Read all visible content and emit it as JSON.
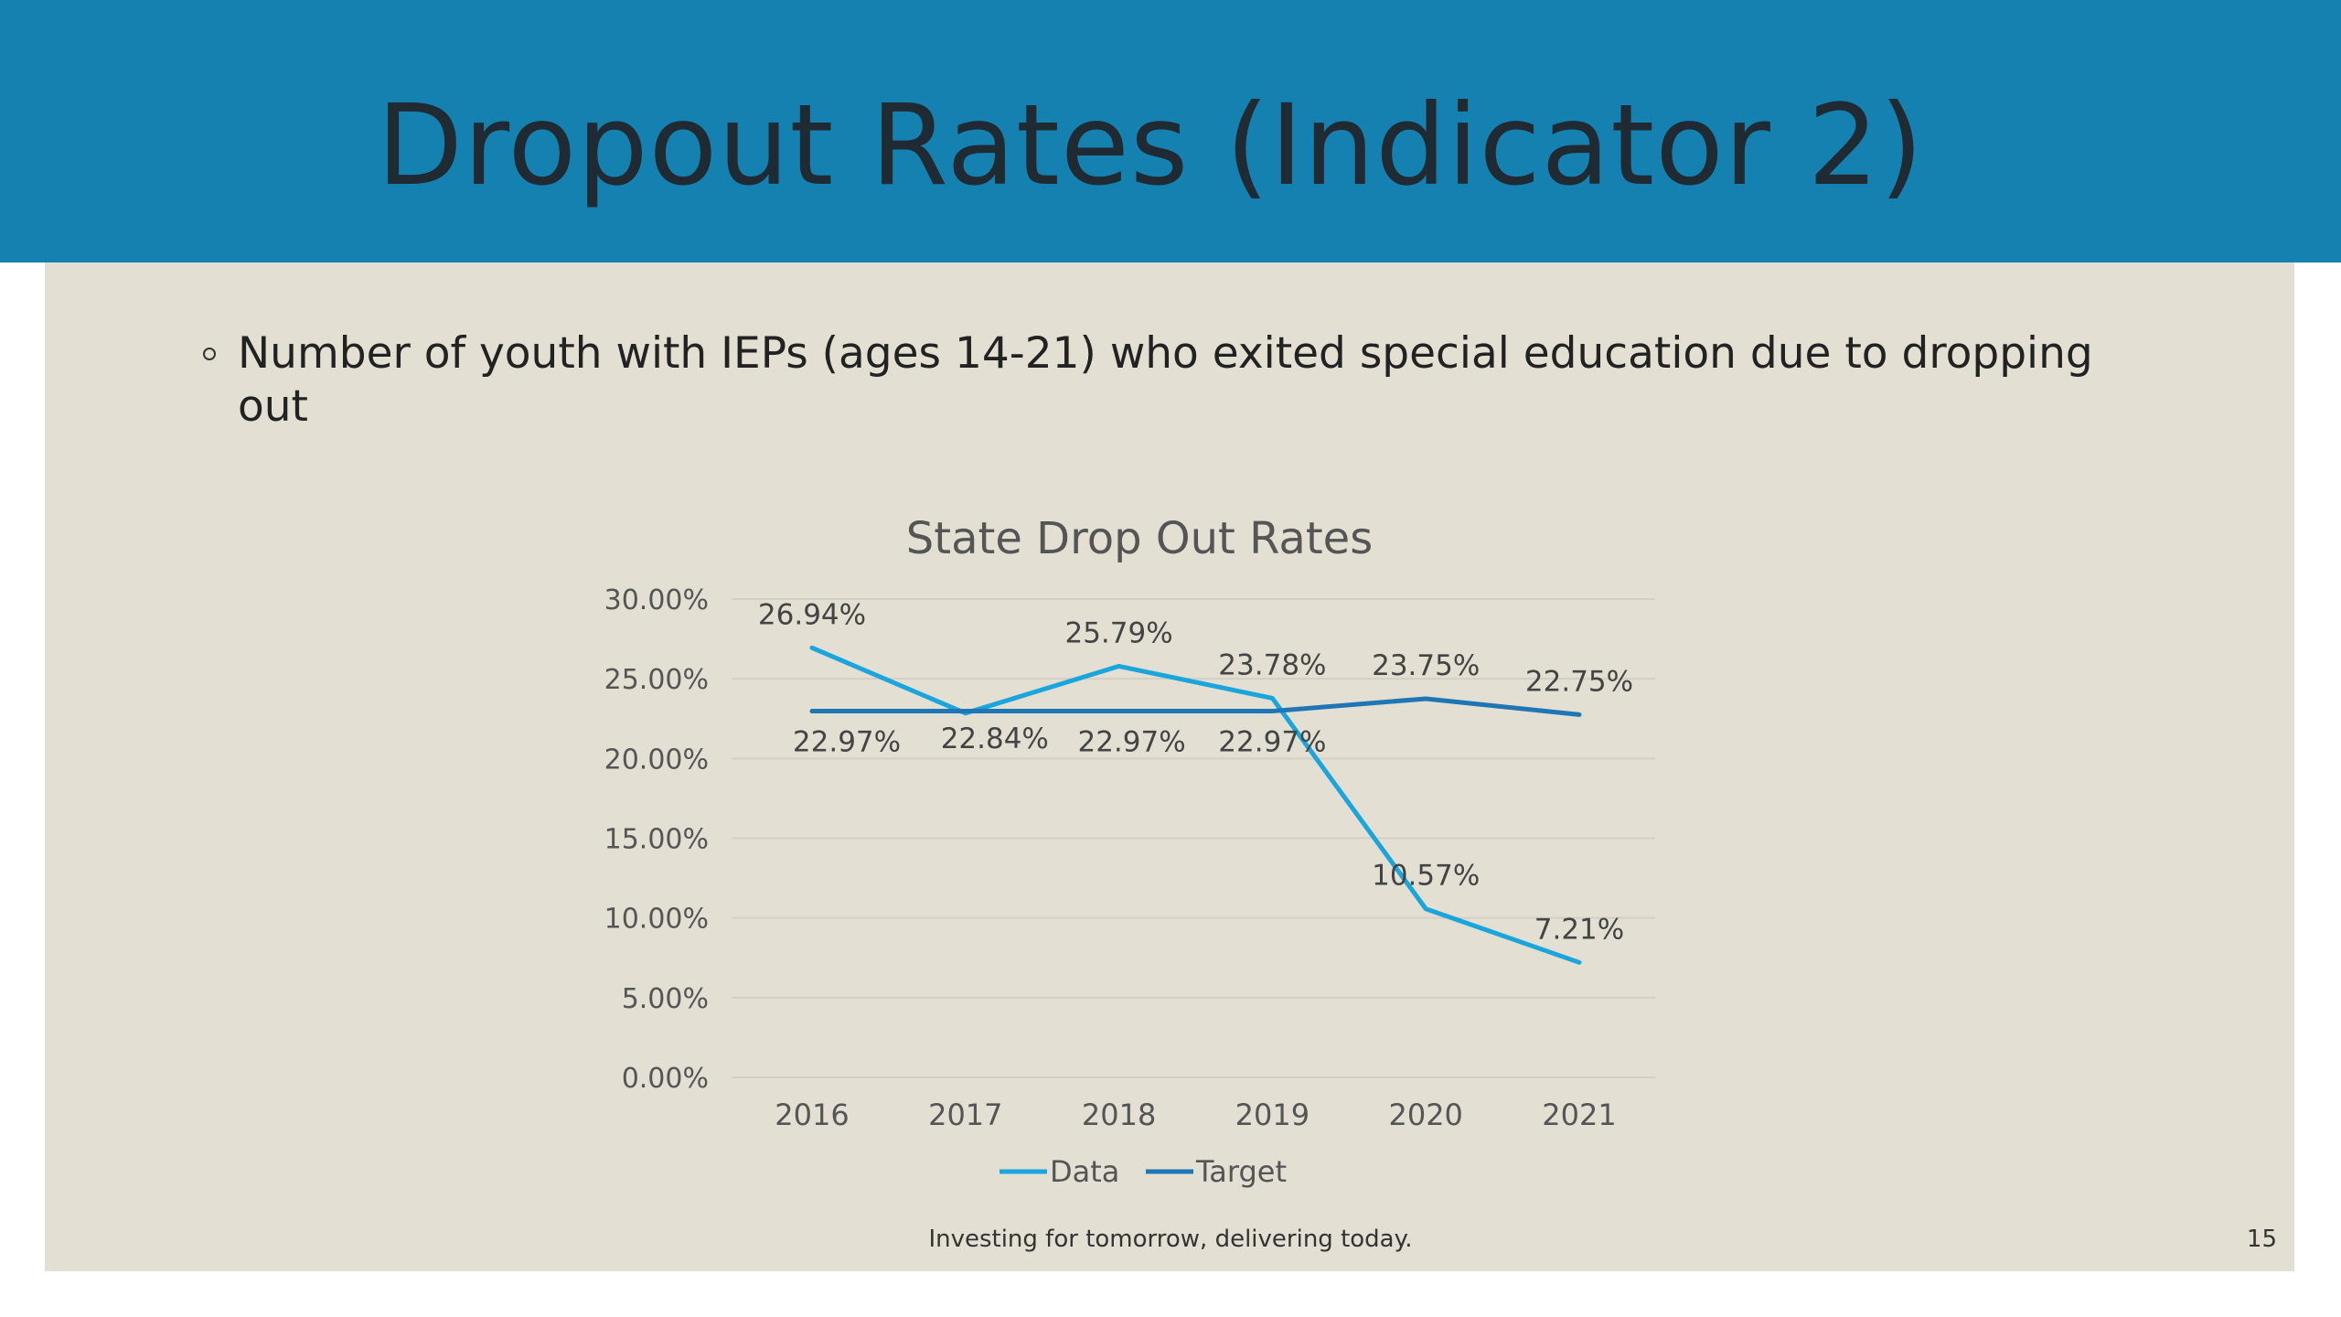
{
  "slide": {
    "title": "Dropout Rates (Indicator 2)",
    "bullet": "Number of youth with IEPs (ages 14-21) who exited special education due to dropping out",
    "footer": "Investing for tomorrow, delivering today.",
    "page_number": "15"
  },
  "colors": {
    "header": "#1481b0",
    "panel": "#e3dfd2",
    "data_series": "#1aa6dd",
    "target_series": "#1f76b4"
  },
  "chart_data": {
    "type": "line",
    "title": "State Drop Out Rates",
    "xlabel": "",
    "ylabel": "",
    "categories": [
      "2016",
      "2017",
      "2018",
      "2019",
      "2020",
      "2021"
    ],
    "ylim": [
      0,
      30
    ],
    "yticks": [
      0,
      5,
      10,
      15,
      20,
      25,
      30
    ],
    "ytick_labels": [
      "0.00%",
      "5.00%",
      "10.00%",
      "15.00%",
      "20.00%",
      "25.00%",
      "30.00%"
    ],
    "grid": true,
    "legend": "bottom",
    "series": [
      {
        "name": "Data",
        "values": [
          26.94,
          22.84,
          25.79,
          23.78,
          10.57,
          7.21
        ],
        "labels": [
          "26.94%",
          "22.84%",
          "25.79%",
          "23.78%",
          "10.57%",
          "7.21%"
        ]
      },
      {
        "name": "Target",
        "values": [
          22.97,
          22.97,
          22.97,
          22.97,
          23.75,
          22.75
        ],
        "labels": [
          "22.97%",
          "",
          "22.97%",
          "22.97%",
          "23.75%",
          "22.75%"
        ]
      }
    ]
  }
}
